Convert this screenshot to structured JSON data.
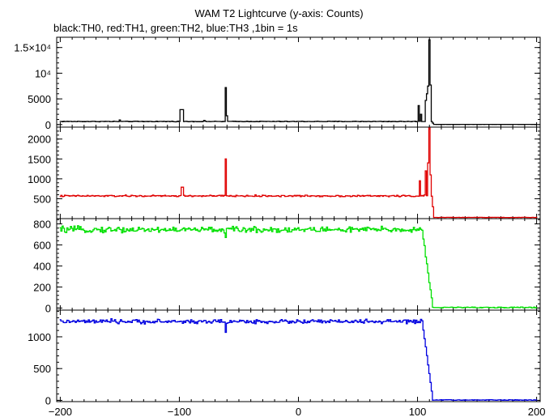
{
  "title": "WAM T2 Lightcurve (y-axis: Counts)",
  "subtitle": "black:TH0, red:TH1, green:TH2, blue:TH3 ,1bin = 1s",
  "chart_data": {
    "type": "line",
    "x_range": [
      -203,
      203
    ],
    "x_ticks": [
      -200,
      -100,
      0,
      100,
      200
    ],
    "x_tick_labels": [
      "−200",
      "−100",
      "0",
      "100",
      "200"
    ],
    "panels": [
      {
        "name": "TH0",
        "color": "#000000",
        "ylim": [
          -500,
          17000
        ],
        "y_ticks": [
          0,
          5000,
          10000,
          15000
        ],
        "y_tick_labels": [
          "0",
          "5000",
          "10⁴",
          "1.5×10⁴"
        ],
        "baseline": 600,
        "noise": 60,
        "features": [
          {
            "x": -150,
            "w": 1,
            "y": 900
          },
          {
            "x": -99,
            "w": 3,
            "y": 2900
          },
          {
            "x": -79,
            "w": 1,
            "y": 800
          },
          {
            "x": -61,
            "w": 1,
            "y": 7200
          },
          {
            "x": -60,
            "w": 1,
            "y": 1700
          },
          {
            "x": 101,
            "w": 1,
            "y": 3700
          },
          {
            "x": 103,
            "w": 1,
            "y": 2000
          },
          {
            "x": 107,
            "w": 1,
            "y": 4700
          },
          {
            "x": 108,
            "w": 1,
            "y": 6000
          },
          {
            "x": 109,
            "w": 1,
            "y": 7500
          },
          {
            "x": 110,
            "w": 1,
            "y": 16500
          },
          {
            "x": 111,
            "w": 1,
            "y": 7700
          }
        ],
        "drop_start": 112,
        "drop_end": 114,
        "post_level": 30
      },
      {
        "name": "TH1",
        "color": "#e00000",
        "ylim": [
          0,
          2300
        ],
        "y_ticks": [
          500,
          1000,
          1500,
          2000
        ],
        "y_tick_labels": [
          "500",
          "1000",
          "1500",
          "2000"
        ],
        "baseline": 570,
        "noise": 20,
        "features": [
          {
            "x": -98,
            "w": 2,
            "y": 790
          },
          {
            "x": -61,
            "w": 1,
            "y": 1500
          },
          {
            "x": 102,
            "w": 1,
            "y": 950
          },
          {
            "x": 107,
            "w": 1,
            "y": 1200
          },
          {
            "x": 109,
            "w": 1,
            "y": 1400
          },
          {
            "x": 110,
            "w": 1,
            "y": 2280
          },
          {
            "x": 111,
            "w": 1,
            "y": 1100
          }
        ],
        "drop_start": 112,
        "drop_end": 114,
        "post_level": 30
      },
      {
        "name": "TH2",
        "color": "#00e000",
        "ylim": [
          -20,
          850
        ],
        "y_ticks": [
          0,
          200,
          400,
          600,
          800
        ],
        "y_tick_labels": [
          "0",
          "200",
          "400",
          "600",
          "800"
        ],
        "baseline": 745,
        "noise": 28,
        "features": [
          {
            "x": -61,
            "w": 1,
            "y": 670
          }
        ],
        "drop_start": 104,
        "drop_end": 113,
        "post_level": 5
      },
      {
        "name": "TH3",
        "color": "#0000e0",
        "ylim": [
          -20,
          1420
        ],
        "y_ticks": [
          0,
          500,
          1000
        ],
        "y_tick_labels": [
          "0",
          "500",
          "1000"
        ],
        "baseline": 1240,
        "noise": 32,
        "features": [
          {
            "x": -61,
            "w": 1,
            "y": 1070
          }
        ],
        "drop_start": 104,
        "drop_end": 113,
        "post_level": 5
      }
    ]
  }
}
